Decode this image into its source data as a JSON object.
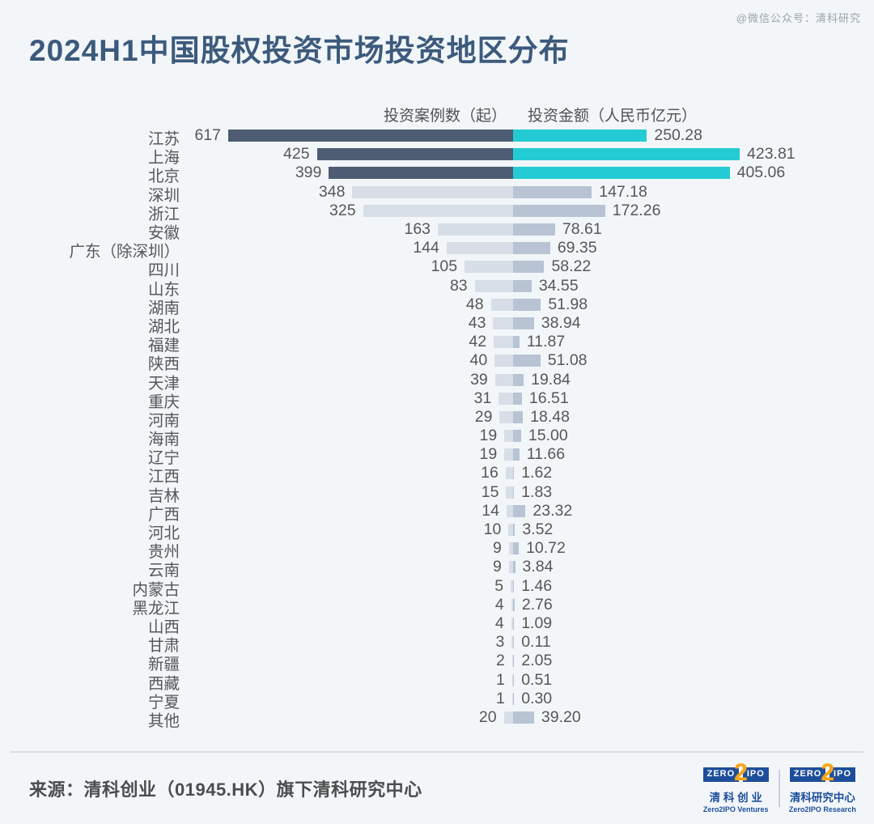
{
  "title": "2024H1中国股权投资市场投资地区分布",
  "watermark": "@微信公众号：清科研究",
  "legend": {
    "cases": "投资案例数（起）",
    "amount": "投资金额（人民币亿元）"
  },
  "footer": {
    "source": "来源：清科创业（01945.HK）旗下清科研究中心",
    "logos": [
      {
        "zero": "ZERO",
        "two": "2",
        "ipo": "IPO",
        "cn": "清 科 创 业",
        "en": "Zero2IPO Ventures"
      },
      {
        "zero": "ZERO",
        "two": "2",
        "ipo": "IPO",
        "cn": "清科研究中心",
        "en": "Zero2IPO Research"
      }
    ]
  },
  "colors": {
    "background": "#f2f6f9",
    "title": "#3c5a7c",
    "cases_highlight": "#4e5c73",
    "amount_highlight": "#23ccd4",
    "cases_normal": "#d8dee7",
    "amount_normal": "#b8c3d3",
    "text": "#575757"
  },
  "chart_data": {
    "type": "bar",
    "orientation": "diverging-horizontal",
    "title": "2024H1中国股权投资市场投资地区分布",
    "highlighted_top_rows": 3,
    "categories": [
      "江苏",
      "上海",
      "北京",
      "深圳",
      "浙江",
      "安徽",
      "广东（除深圳）",
      "四川",
      "山东",
      "湖南",
      "湖北",
      "福建",
      "陕西",
      "天津",
      "重庆",
      "河南",
      "海南",
      "辽宁",
      "江西",
      "吉林",
      "广西",
      "河北",
      "贵州",
      "云南",
      "内蒙古",
      "黑龙江",
      "山西",
      "甘肃",
      "新疆",
      "西藏",
      "宁夏",
      "其他"
    ],
    "series": [
      {
        "name": "投资案例数（起）",
        "side": "left",
        "values": [
          617,
          425,
          399,
          348,
          325,
          163,
          144,
          105,
          83,
          48,
          43,
          42,
          40,
          39,
          31,
          29,
          19,
          19,
          16,
          15,
          14,
          10,
          9,
          9,
          5,
          4,
          4,
          3,
          2,
          1,
          1,
          20
        ]
      },
      {
        "name": "投资金额（人民币亿元）",
        "side": "right",
        "decimals": 2,
        "values": [
          250.28,
          423.81,
          405.06,
          147.18,
          172.26,
          78.61,
          69.35,
          58.22,
          34.55,
          51.98,
          38.94,
          11.87,
          51.08,
          19.84,
          16.51,
          18.48,
          15.0,
          11.66,
          1.62,
          1.83,
          23.32,
          3.52,
          10.72,
          3.84,
          1.46,
          2.76,
          1.09,
          0.11,
          2.05,
          0.51,
          0.3,
          39.2
        ]
      }
    ],
    "axis": {
      "left_max": 617,
      "right_max": 423.81,
      "grid": false
    }
  }
}
